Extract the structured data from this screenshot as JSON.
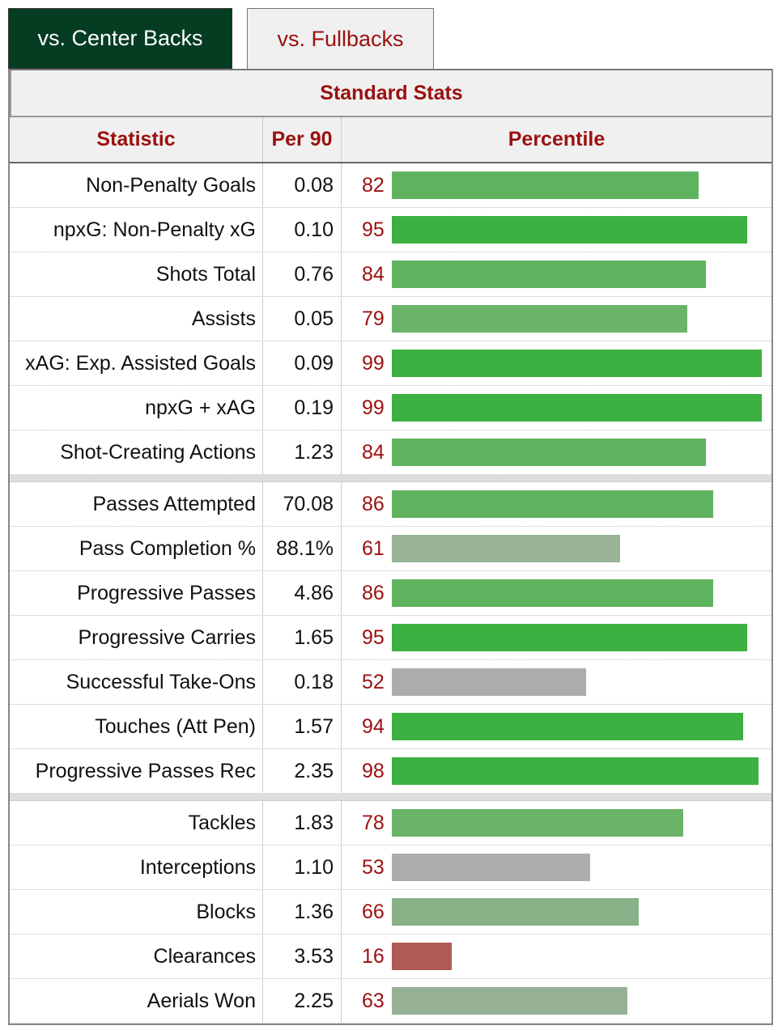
{
  "tabs": [
    {
      "label": "vs. Center Backs",
      "active": true
    },
    {
      "label": "vs. Fullbacks",
      "active": false
    }
  ],
  "table": {
    "title": "Standard Stats",
    "headers": [
      "Statistic",
      "Per 90",
      "Percentile"
    ],
    "groups": [
      [
        {
          "stat": "Non-Penalty Goals",
          "per90": "0.08",
          "pct": 82,
          "color": "#5fb35f"
        },
        {
          "stat": "npxG: Non-Penalty xG",
          "per90": "0.10",
          "pct": 95,
          "color": "#3cb040"
        },
        {
          "stat": "Shots Total",
          "per90": "0.76",
          "pct": 84,
          "color": "#5fb35f"
        },
        {
          "stat": "Assists",
          "per90": "0.05",
          "pct": 79,
          "color": "#6ab46a"
        },
        {
          "stat": "xAG: Exp. Assisted Goals",
          "per90": "0.09",
          "pct": 99,
          "color": "#3cb040"
        },
        {
          "stat": "npxG + xAG",
          "per90": "0.19",
          "pct": 99,
          "color": "#3cb040"
        },
        {
          "stat": "Shot-Creating Actions",
          "per90": "1.23",
          "pct": 84,
          "color": "#5fb35f"
        }
      ],
      [
        {
          "stat": "Passes Attempted",
          "per90": "70.08",
          "pct": 86,
          "color": "#5fb35f"
        },
        {
          "stat": "Pass Completion %",
          "per90": "88.1%",
          "pct": 61,
          "color": "#98b398"
        },
        {
          "stat": "Progressive Passes",
          "per90": "4.86",
          "pct": 86,
          "color": "#5fb35f"
        },
        {
          "stat": "Progressive Carries",
          "per90": "1.65",
          "pct": 95,
          "color": "#3cb040"
        },
        {
          "stat": "Successful Take-Ons",
          "per90": "0.18",
          "pct": 52,
          "color": "#acacac"
        },
        {
          "stat": "Touches (Att Pen)",
          "per90": "1.57",
          "pct": 94,
          "color": "#3cb040"
        },
        {
          "stat": "Progressive Passes Rec",
          "per90": "2.35",
          "pct": 98,
          "color": "#3cb040"
        }
      ],
      [
        {
          "stat": "Tackles",
          "per90": "1.83",
          "pct": 78,
          "color": "#6ab46a"
        },
        {
          "stat": "Interceptions",
          "per90": "1.10",
          "pct": 53,
          "color": "#acacac"
        },
        {
          "stat": "Blocks",
          "per90": "1.36",
          "pct": 66,
          "color": "#88b188"
        },
        {
          "stat": "Clearances",
          "per90": "3.53",
          "pct": 16,
          "color": "#b05a55"
        },
        {
          "stat": "Aerials Won",
          "per90": "2.25",
          "pct": 63,
          "color": "#96b196"
        }
      ]
    ]
  }
}
